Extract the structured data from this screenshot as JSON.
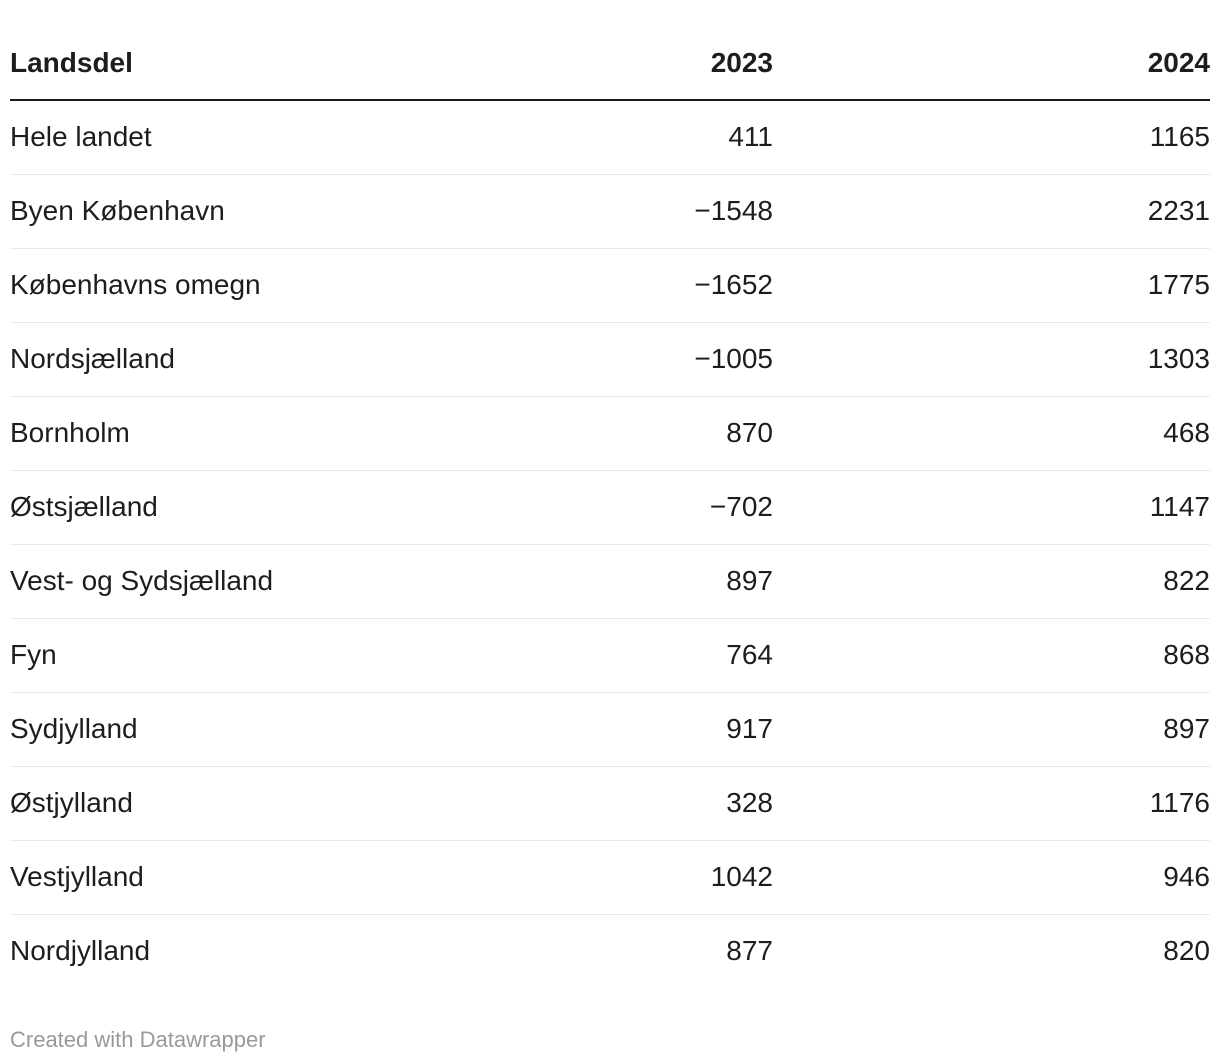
{
  "chart_data": {
    "type": "table",
    "title": "",
    "categories": [
      "Hele landet",
      "Byen København",
      "Københavns omegn",
      "Nordsjælland",
      "Bornholm",
      "Østsjælland",
      "Vest- og Sydsjælland",
      "Fyn",
      "Sydjylland",
      "Østjylland",
      "Vestjylland",
      "Nordjylland"
    ],
    "series": [
      {
        "name": "2023",
        "values": [
          411,
          -1548,
          -1652,
          -1005,
          870,
          -702,
          897,
          764,
          917,
          328,
          1042,
          877
        ]
      },
      {
        "name": "2024",
        "values": [
          1165,
          2231,
          1775,
          1303,
          468,
          1147,
          822,
          868,
          897,
          1176,
          946,
          820
        ]
      }
    ],
    "layout_hints": {
      "first_column_align": "left",
      "value_columns_align": "right",
      "grid": "horizontal-row-separators"
    }
  },
  "table": {
    "columns": [
      {
        "label": "Landsdel",
        "align": "left"
      },
      {
        "label": "2023",
        "align": "right"
      },
      {
        "label": "2024",
        "align": "right"
      }
    ],
    "rows": [
      {
        "region": "Hele landet",
        "y2023": "411",
        "y2024": "1165"
      },
      {
        "region": "Byen København",
        "y2023": "−1548",
        "y2024": "2231"
      },
      {
        "region": "Københavns omegn",
        "y2023": "−1652",
        "y2024": "1775"
      },
      {
        "region": "Nordsjælland",
        "y2023": "−1005",
        "y2024": "1303"
      },
      {
        "region": "Bornholm",
        "y2023": "870",
        "y2024": "468"
      },
      {
        "region": "Østsjælland",
        "y2023": "−702",
        "y2024": "1147"
      },
      {
        "region": "Vest- og Sydsjælland",
        "y2023": "897",
        "y2024": "822"
      },
      {
        "region": "Fyn",
        "y2023": "764",
        "y2024": "868"
      },
      {
        "region": "Sydjylland",
        "y2023": "917",
        "y2024": "897"
      },
      {
        "region": "Østjylland",
        "y2023": "328",
        "y2024": "1176"
      },
      {
        "region": "Vestjylland",
        "y2023": "1042",
        "y2024": "946"
      },
      {
        "region": "Nordjylland",
        "y2023": "877",
        "y2024": "820"
      }
    ]
  },
  "footer": {
    "attribution": "Created with Datawrapper"
  },
  "colors": {
    "background": "#ffffff",
    "text": "#1d1d1d",
    "header_border": "#1d1d1d",
    "row_border": "#e9e9e9",
    "attribution": "#999999"
  }
}
